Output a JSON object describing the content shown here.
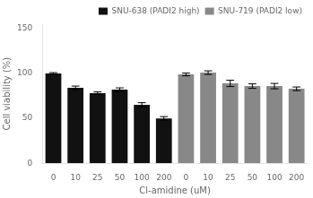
{
  "chart_data": {
    "type": "bar",
    "xlabel": "Cl-amidine (uM)",
    "ylabel": "Cell viability (%)",
    "categories": [
      "0",
      "10",
      "25",
      "50",
      "100",
      "200",
      "0",
      "10",
      "25",
      "50",
      "100",
      "200"
    ],
    "series": [
      {
        "name": "SNU-638 (PADI2 high)",
        "color": "#111111",
        "values": [
          100,
          84,
          78,
          82,
          65,
          50,
          null,
          null,
          null,
          null,
          null,
          null
        ],
        "errors": [
          1.0,
          2.0,
          1.5,
          2.0,
          2.5,
          2.0,
          null,
          null,
          null,
          null,
          null,
          null
        ]
      },
      {
        "name": "SNU-719 (PADI2 low)",
        "color": "#888888",
        "values": [
          null,
          null,
          null,
          null,
          null,
          null,
          99,
          101,
          89,
          86,
          86,
          83
        ],
        "errors": [
          null,
          null,
          null,
          null,
          null,
          null,
          1.5,
          2.0,
          3.5,
          2.5,
          3.0,
          2.0
        ]
      }
    ],
    "ylim": [
      0,
      155
    ],
    "yticks": [
      0,
      50,
      100,
      150
    ],
    "grid": false,
    "legend": "upper right"
  }
}
